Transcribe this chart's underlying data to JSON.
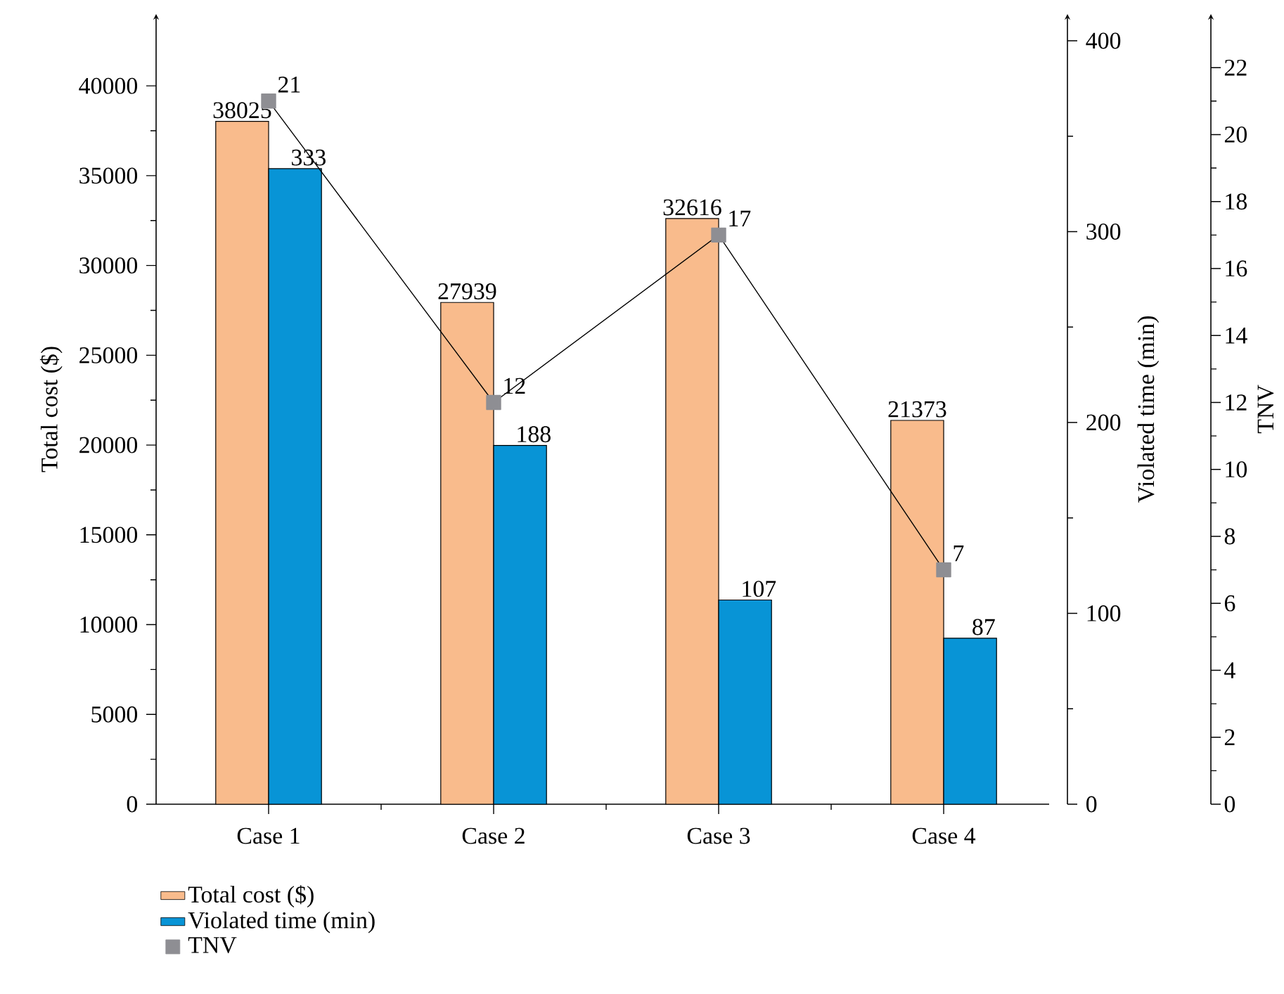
{
  "chart_data": {
    "type": "bar",
    "categories": [
      "Case 1",
      "Case 2",
      "Case 3",
      "Case 4"
    ],
    "ylabel": "Total cost ($)",
    "y2label": "Violated time (min)",
    "y3label": "TNV",
    "series": [
      {
        "name": "Total cost ($)",
        "color": "#f9bb8c",
        "values": [
          38025,
          27939,
          32616,
          21373
        ]
      },
      {
        "name": "Violated time (min)",
        "color": "#0894d6",
        "values": [
          333,
          188,
          107,
          87
        ],
        "axis": "y2"
      },
      {
        "name": "TNV",
        "type": "line",
        "color": "#8e8e93",
        "values": [
          21,
          12,
          17,
          7
        ],
        "axis": "y3",
        "marker": "square",
        "line_style": "solid"
      }
    ],
    "ylim": [
      0,
      44000
    ],
    "yticks": [
      0,
      5000,
      10000,
      15000,
      20000,
      25000,
      30000,
      35000,
      40000
    ],
    "y2lim": [
      0,
      414
    ],
    "y2ticks": [
      0,
      100,
      200,
      300,
      400
    ],
    "y3lim": [
      0,
      23.6
    ],
    "y3ticks": [
      0,
      2,
      4,
      6,
      8,
      10,
      12,
      14,
      16,
      18,
      20,
      22
    ],
    "data_labels": true,
    "legend": "bottom"
  }
}
